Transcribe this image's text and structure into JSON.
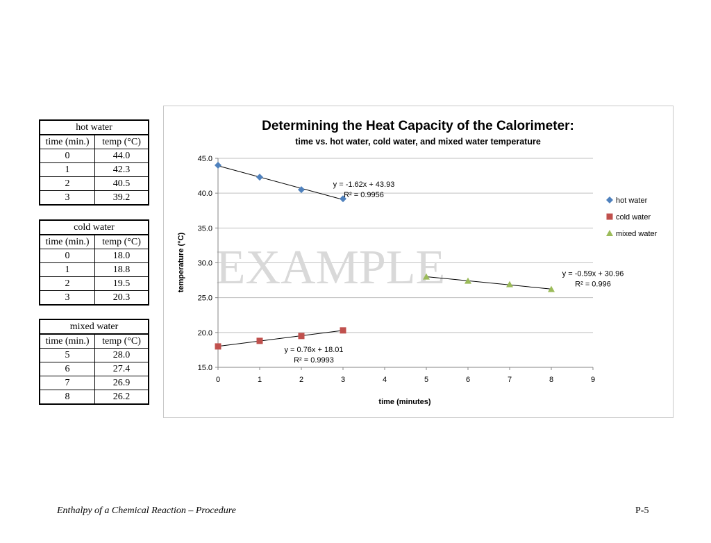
{
  "tables": [
    {
      "title": "hot water",
      "col_time": "time (min.)",
      "col_temp": "temp (°C)",
      "rows": [
        [
          "0",
          "44.0"
        ],
        [
          "1",
          "42.3"
        ],
        [
          "2",
          "40.5"
        ],
        [
          "3",
          "39.2"
        ]
      ]
    },
    {
      "title": "cold water",
      "col_time": "time (min.)",
      "col_temp": "temp (°C)",
      "rows": [
        [
          "0",
          "18.0"
        ],
        [
          "1",
          "18.8"
        ],
        [
          "2",
          "19.5"
        ],
        [
          "3",
          "20.3"
        ]
      ]
    },
    {
      "title": "mixed water",
      "col_time": "time (min.)",
      "col_temp": "temp (°C)",
      "rows": [
        [
          "5",
          "28.0"
        ],
        [
          "6",
          "27.4"
        ],
        [
          "7",
          "26.9"
        ],
        [
          "8",
          "26.2"
        ]
      ]
    }
  ],
  "chart_data": {
    "type": "scatter",
    "title": "Determining the Heat Capacity of the Calorimeter:",
    "subtitle": "time vs. hot water, cold water, and mixed water temperature",
    "xlabel": "time (minutes)",
    "ylabel": "temperature (°C)",
    "xlim": [
      0,
      9
    ],
    "ylim": [
      15,
      45
    ],
    "x_ticks": [
      "0",
      "1",
      "2",
      "3",
      "4",
      "5",
      "6",
      "7",
      "8",
      "9"
    ],
    "y_ticks": [
      "15.0",
      "20.0",
      "25.0",
      "30.0",
      "35.0",
      "40.0",
      "45.0"
    ],
    "grid": "horizontal",
    "legend_position": "right",
    "watermark": "EXAMPLE",
    "series": [
      {
        "name": "hot water",
        "marker": "diamond",
        "color": "#4f81bd",
        "x": [
          0,
          1,
          2,
          3
        ],
        "y": [
          44.0,
          42.3,
          40.5,
          39.2
        ],
        "trend": {
          "slope": -1.62,
          "intercept": 43.93,
          "x_range": [
            0,
            3
          ]
        },
        "equation": "y = -1.62x + 43.93",
        "r2": "R² = 0.9956"
      },
      {
        "name": "cold water",
        "marker": "square",
        "color": "#c0504d",
        "x": [
          0,
          1,
          2,
          3
        ],
        "y": [
          18.0,
          18.8,
          19.5,
          20.3
        ],
        "trend": {
          "slope": 0.76,
          "intercept": 18.01,
          "x_range": [
            0,
            3
          ]
        },
        "equation": "y = 0.76x + 18.01",
        "r2": "R² = 0.9993"
      },
      {
        "name": "mixed water",
        "marker": "triangle",
        "color": "#9bbb59",
        "x": [
          5,
          6,
          7,
          8
        ],
        "y": [
          28.0,
          27.4,
          26.9,
          26.2
        ],
        "trend": {
          "slope": -0.59,
          "intercept": 30.96,
          "x_range": [
            5,
            8
          ]
        },
        "equation": "y = -0.59x + 30.96",
        "r2": "R² = 0.996"
      }
    ]
  },
  "footer": {
    "left": "Enthalpy of a Chemical Reaction – Procedure",
    "right": "P-5"
  }
}
